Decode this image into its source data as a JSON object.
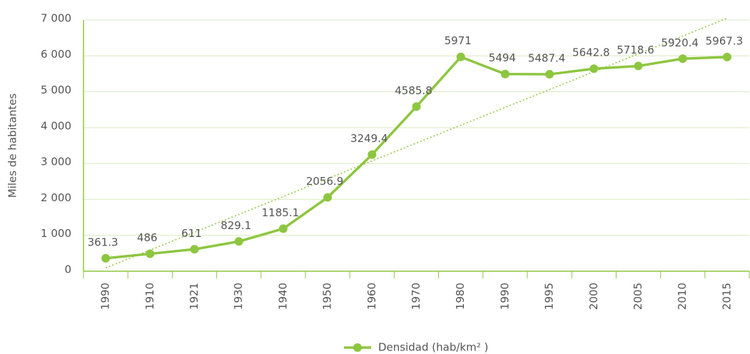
{
  "chart_data": {
    "type": "line",
    "y_label": "Miles de habitantes",
    "categories": [
      "1990",
      "1910",
      "1921",
      "1930",
      "1940",
      "1950",
      "1960",
      "1970",
      "1980",
      "1990",
      "1995",
      "2000",
      "2005",
      "2010",
      "2015"
    ],
    "series": [
      {
        "name": "Densidad (hab/km² )",
        "color": "#8dc63f",
        "values": [
          361.3,
          486,
          611,
          829.1,
          1185.1,
          2056.9,
          3249.4,
          4585.8,
          5971,
          5494,
          5487.4,
          5642.8,
          5718.6,
          5920.4,
          5967.3
        ]
      }
    ],
    "ylim": [
      0,
      7000
    ],
    "yticks": [
      0,
      {
        "value": 1000,
        "label": "1 000"
      },
      {
        "value": 2000,
        "label": "2 000"
      },
      {
        "value": 3000,
        "label": "3 000"
      },
      {
        "value": 4000,
        "label": "4 000"
      },
      {
        "value": 5000,
        "label": "5 000"
      },
      {
        "value": 6000,
        "label": "6 000"
      },
      {
        "value": 7000,
        "label": "7 000"
      }
    ],
    "grid": true,
    "trendline": true,
    "legend": "bottom"
  }
}
